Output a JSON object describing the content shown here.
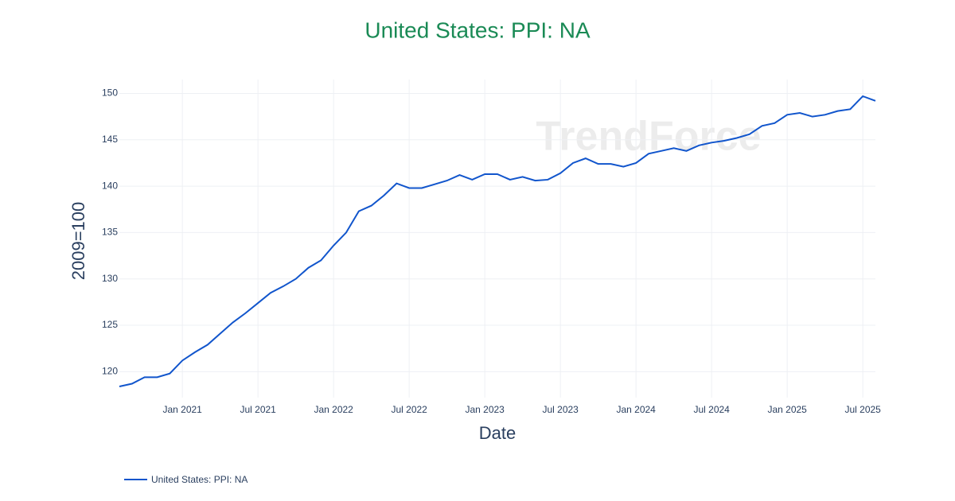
{
  "chart_data": {
    "type": "line",
    "title": "United States: PPI: NA",
    "watermark": "TrendForce",
    "x_label": "Date",
    "y_label": "2009=100",
    "x": [
      "2020-08",
      "2020-09",
      "2020-10",
      "2020-11",
      "2020-12",
      "2021-01",
      "2021-02",
      "2021-03",
      "2021-04",
      "2021-05",
      "2021-06",
      "2021-07",
      "2021-08",
      "2021-09",
      "2021-10",
      "2021-11",
      "2021-12",
      "2022-01",
      "2022-02",
      "2022-03",
      "2022-04",
      "2022-05",
      "2022-06",
      "2022-07",
      "2022-08",
      "2022-09",
      "2022-10",
      "2022-11",
      "2022-12",
      "2023-01",
      "2023-02",
      "2023-03",
      "2023-04",
      "2023-05",
      "2023-06",
      "2023-07",
      "2023-08",
      "2023-09",
      "2023-10",
      "2023-11",
      "2023-12",
      "2024-01",
      "2024-02",
      "2024-03",
      "2024-04",
      "2024-05",
      "2024-06",
      "2024-07",
      "2024-08",
      "2024-09",
      "2024-10",
      "2024-11",
      "2024-12",
      "2025-01",
      "2025-02",
      "2025-03",
      "2025-04",
      "2025-05",
      "2025-06",
      "2025-07",
      "2025-08"
    ],
    "series": [
      {
        "name": "United States: PPI: NA",
        "color": "#1155cc",
        "values": [
          118.4,
          118.7,
          119.4,
          119.4,
          119.8,
          121.2,
          122.1,
          122.9,
          124.1,
          125.3,
          126.3,
          127.4,
          128.5,
          129.2,
          130.0,
          131.2,
          132.0,
          133.6,
          135.0,
          137.3,
          137.9,
          139.0,
          140.3,
          139.8,
          139.8,
          140.2,
          140.6,
          141.2,
          140.7,
          141.3,
          141.3,
          140.7,
          141.0,
          140.6,
          140.7,
          141.4,
          142.5,
          143.0,
          142.4,
          142.4,
          142.1,
          142.5,
          143.5,
          143.8,
          144.1,
          143.8,
          144.4,
          144.7,
          144.9,
          145.2,
          145.6,
          146.5,
          146.8,
          147.7,
          147.9,
          147.5,
          147.7,
          148.1,
          148.3,
          149.7,
          149.2
        ]
      }
    ],
    "xlim": [
      "2020-08",
      "2025-08"
    ],
    "xticks": [
      {
        "value": "2021-01",
        "label": "Jan 2021"
      },
      {
        "value": "2021-07",
        "label": "Jul 2021"
      },
      {
        "value": "2022-01",
        "label": "Jan 2022"
      },
      {
        "value": "2022-07",
        "label": "Jul 2022"
      },
      {
        "value": "2023-01",
        "label": "Jan 2023"
      },
      {
        "value": "2023-07",
        "label": "Jul 2023"
      },
      {
        "value": "2024-01",
        "label": "Jan 2024"
      },
      {
        "value": "2024-07",
        "label": "Jul 2024"
      },
      {
        "value": "2025-01",
        "label": "Jan 2025"
      },
      {
        "value": "2025-07",
        "label": "Jul 2025"
      }
    ],
    "ylim": [
      117.2,
      151.5
    ],
    "yticks": [
      120,
      125,
      130,
      135,
      140,
      145,
      150
    ],
    "grid": true
  }
}
